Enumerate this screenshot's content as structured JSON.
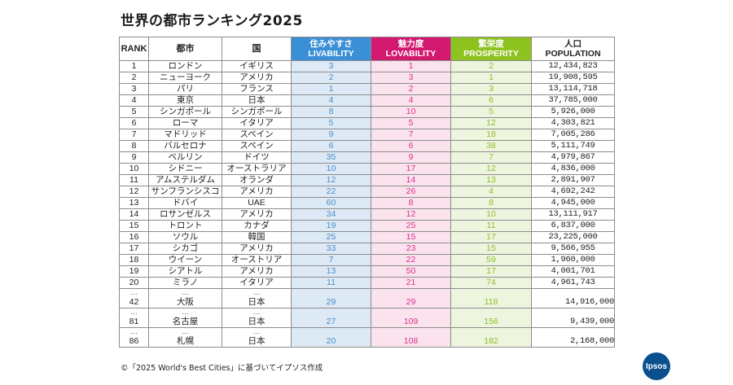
{
  "title": "世界の都市ランキング2025",
  "headers": {
    "rank": "RANK",
    "city": "都市",
    "country": "国",
    "livability_jp": "住みやすさ",
    "livability_en": "LIVABILITY",
    "lovability_jp": "魅力度",
    "lovability_en": "LOVABILITY",
    "prosperity_jp": "繁栄度",
    "prosperity_en": "PROSPERITY",
    "population_jp": "人口",
    "population_en": "POPULATION"
  },
  "rows": [
    {
      "rank": "1",
      "city": "ロンドン",
      "country": "イギリス",
      "livability": "3",
      "lovability": "1",
      "prosperity": "2",
      "population": "12,434,823"
    },
    {
      "rank": "2",
      "city": "ニューヨーク",
      "country": "アメリカ",
      "livability": "2",
      "lovability": "3",
      "prosperity": "1",
      "population": "19,908,595"
    },
    {
      "rank": "3",
      "city": "パリ",
      "country": "フランス",
      "livability": "1",
      "lovability": "2",
      "prosperity": "3",
      "population": "13,114,718"
    },
    {
      "rank": "4",
      "city": "東京",
      "country": "日本",
      "livability": "4",
      "lovability": "4",
      "prosperity": "6",
      "population": "37,785,000"
    },
    {
      "rank": "5",
      "city": "シンガポール",
      "country": "シンガポール",
      "livability": "8",
      "lovability": "10",
      "prosperity": "5",
      "population": "5,926,000"
    },
    {
      "rank": "6",
      "city": "ローマ",
      "country": "イタリア",
      "livability": "5",
      "lovability": "5",
      "prosperity": "12",
      "population": "4,303,821"
    },
    {
      "rank": "7",
      "city": "マドリッド",
      "country": "スペイン",
      "livability": "9",
      "lovability": "7",
      "prosperity": "18",
      "population": "7,005,286"
    },
    {
      "rank": "8",
      "city": "バルセロナ",
      "country": "スペイン",
      "livability": "6",
      "lovability": "6",
      "prosperity": "38",
      "population": "5,111,749"
    },
    {
      "rank": "9",
      "city": "ベルリン",
      "country": "ドイツ",
      "livability": "35",
      "lovability": "9",
      "prosperity": "7",
      "population": "4,979,867"
    },
    {
      "rank": "10",
      "city": "シドニー",
      "country": "オーストラリア",
      "livability": "10",
      "lovability": "17",
      "prosperity": "12",
      "population": "4,836,000"
    },
    {
      "rank": "11",
      "city": "アムステルダム",
      "country": "オランダ",
      "livability": "12",
      "lovability": "14",
      "prosperity": "13",
      "population": "2,891,907"
    },
    {
      "rank": "12",
      "city": "サンフランシスコ",
      "country": "アメリカ",
      "livability": "22",
      "lovability": "26",
      "prosperity": "4",
      "population": "4,692,242"
    },
    {
      "rank": "13",
      "city": "ドバイ",
      "country": "UAE",
      "livability": "60",
      "lovability": "8",
      "prosperity": "8",
      "population": "4,945,000"
    },
    {
      "rank": "14",
      "city": "ロサンゼルス",
      "country": "アメリカ",
      "livability": "34",
      "lovability": "12",
      "prosperity": "10",
      "population": "13,111,917"
    },
    {
      "rank": "15",
      "city": "トロント",
      "country": "カナダ",
      "livability": "19",
      "lovability": "25",
      "prosperity": "11",
      "population": "6,837,000"
    },
    {
      "rank": "16",
      "city": "ソウル",
      "country": "韓国",
      "livability": "25",
      "lovability": "15",
      "prosperity": "17",
      "population": "23,225,000"
    },
    {
      "rank": "17",
      "city": "シカゴ",
      "country": "アメリカ",
      "livability": "33",
      "lovability": "23",
      "prosperity": "15",
      "population": "9,566,955"
    },
    {
      "rank": "18",
      "city": "ウイーン",
      "country": "オーストリア",
      "livability": "7",
      "lovability": "22",
      "prosperity": "59",
      "population": "1,960,000"
    },
    {
      "rank": "19",
      "city": "シアトル",
      "country": "アメリカ",
      "livability": "13",
      "lovability": "50",
      "prosperity": "17",
      "population": "4,001,701"
    },
    {
      "rank": "20",
      "city": "ミラノ",
      "country": "イタリア",
      "livability": "11",
      "lovability": "21",
      "prosperity": "74",
      "population": "4,961,743"
    }
  ],
  "extra_rows": [
    {
      "rank": "42",
      "city": "大阪",
      "country": "日本",
      "livability": "29",
      "lovability": "29",
      "prosperity": "118",
      "population": "14,916,000"
    },
    {
      "rank": "81",
      "city": "名古屋",
      "country": "日本",
      "livability": "27",
      "lovability": "109",
      "prosperity": "156",
      "population": "9,439,000"
    },
    {
      "rank": "86",
      "city": "札幌",
      "country": "日本",
      "livability": "20",
      "lovability": "108",
      "prosperity": "182",
      "population": "2,168,000"
    }
  ],
  "ellipsis": "…",
  "footer": "©「2025 World's Best Cities」に基づいてイプソス作成",
  "logo_text": "Ipsos",
  "colors": {
    "livability_header": "#3a8fd6",
    "lovability_header": "#d3186f",
    "prosperity_header": "#8dc21f",
    "livability_cell": "#ddeaf5",
    "lovability_cell": "#fbe3ee",
    "prosperity_cell": "#eef5df",
    "logo": "#0b4f8f"
  }
}
